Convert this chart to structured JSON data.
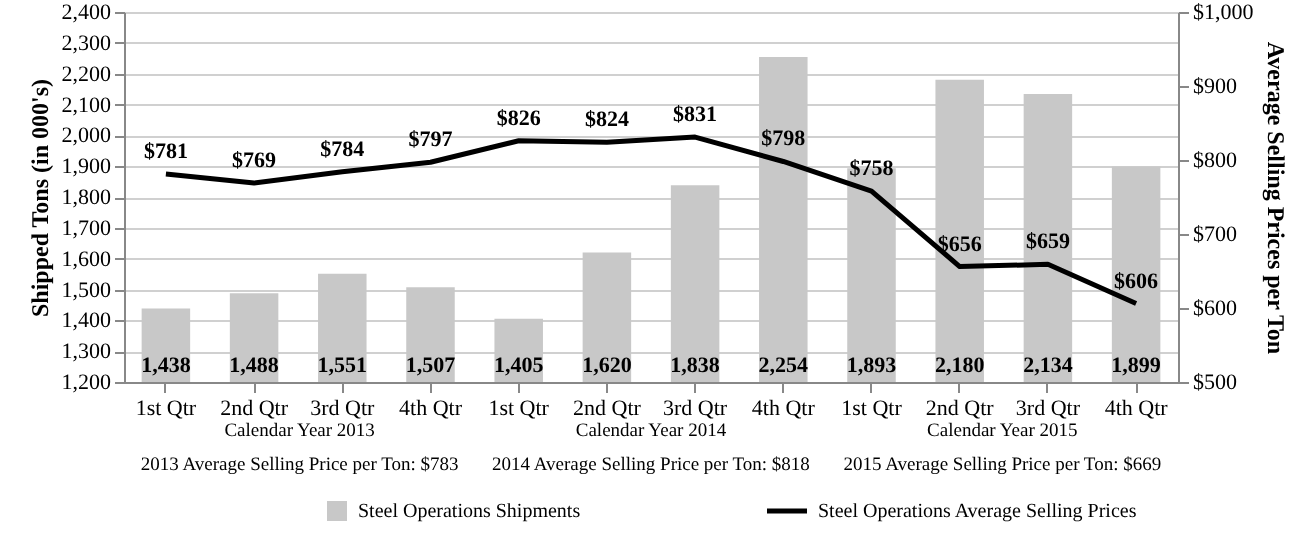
{
  "chart_data": {
    "type": "bar",
    "ylabel": "Shipped Tons (in 000's)",
    "y2label": "Average Selling Prices per Ton",
    "categories": [
      "1st Qtr",
      "2nd Qtr",
      "3rd Qtr",
      "4th Qtr",
      "1st Qtr",
      "2nd Qtr",
      "3rd Qtr",
      "4th Qtr",
      "1st Qtr",
      "2nd Qtr",
      "3rd Qtr",
      "4th Qtr"
    ],
    "series": [
      {
        "name": "Steel Operations Shipments",
        "color": "#c8c8c8",
        "values": [
          1438,
          1488,
          1551,
          1507,
          1405,
          1620,
          1838,
          2254,
          1893,
          2180,
          2134,
          1899
        ],
        "value_labels": [
          "1,438",
          "1,488",
          "1,551",
          "1,507",
          "1,405",
          "1,620",
          "1,838",
          "2,254",
          "1,893",
          "2,180",
          "2,134",
          "1,899"
        ]
      },
      {
        "name": "Steel Operations Average Selling Prices",
        "type": "line",
        "axis": "y2",
        "color": "#000000",
        "values": [
          781,
          769,
          784,
          797,
          826,
          824,
          831,
          798,
          758,
          656,
          659,
          606
        ],
        "value_labels": [
          "$781",
          "$769",
          "$784",
          "$797",
          "$826",
          "$824",
          "$831",
          "$798",
          "$758",
          "$656",
          "$659",
          "$606"
        ]
      }
    ],
    "ylim": [
      1200,
      2400
    ],
    "yticks": [
      {
        "value": 1200,
        "label": "1,200"
      },
      {
        "value": 1300,
        "label": "1,300"
      },
      {
        "value": 1400,
        "label": "1,400"
      },
      {
        "value": 1500,
        "label": "1,500"
      },
      {
        "value": 1600,
        "label": "1,600"
      },
      {
        "value": 1700,
        "label": "1,700"
      },
      {
        "value": 1800,
        "label": "1,800"
      },
      {
        "value": 1900,
        "label": "1,900"
      },
      {
        "value": 2000,
        "label": "2,000"
      },
      {
        "value": 2100,
        "label": "2,100"
      },
      {
        "value": 2200,
        "label": "2,200"
      },
      {
        "value": 2300,
        "label": "2,300"
      },
      {
        "value": 2400,
        "label": "2,400"
      }
    ],
    "y2lim": [
      500,
      1000
    ],
    "y2ticks": [
      {
        "value": 500,
        "label": "$500"
      },
      {
        "value": 600,
        "label": "$600"
      },
      {
        "value": 700,
        "label": "$700"
      },
      {
        "value": 800,
        "label": "$800"
      },
      {
        "value": 900,
        "label": "$900"
      },
      {
        "value": 1000,
        "label": "$1,000"
      }
    ],
    "grid": "y",
    "legend": "bottom",
    "annotations": [
      "Calendar Year 2013",
      "Calendar Year 2014",
      "Calendar Year 2015",
      "2013 Average Selling Price per Ton: $783",
      "2014 Average Selling Price per Ton: $818",
      "2015 Average Selling Price per Ton: $669"
    ]
  }
}
